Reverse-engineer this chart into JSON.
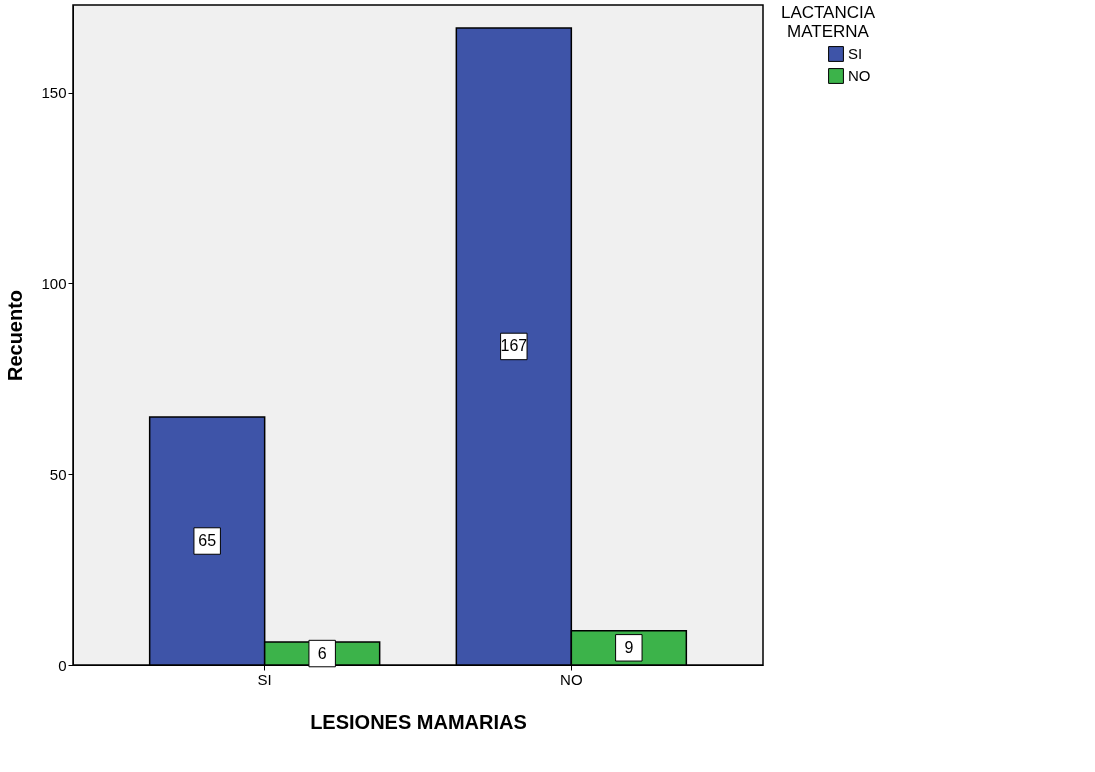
{
  "chart_data": {
    "type": "bar",
    "xlabel": "LESIONES MAMARIAS",
    "ylabel": "Recuento",
    "legend_title": "LACTANCIA MATERNA",
    "categories": [
      "SI",
      "NO"
    ],
    "series": [
      {
        "name": "SI",
        "color": "#3e54a8",
        "values": [
          65,
          167
        ]
      },
      {
        "name": "NO",
        "color": "#3cb34a",
        "values": [
          6,
          9
        ]
      }
    ],
    "ylim": [
      0,
      173
    ],
    "yticks": [
      0,
      50,
      100,
      150
    ],
    "grid": false,
    "legend": "top right",
    "data_labels": true
  }
}
